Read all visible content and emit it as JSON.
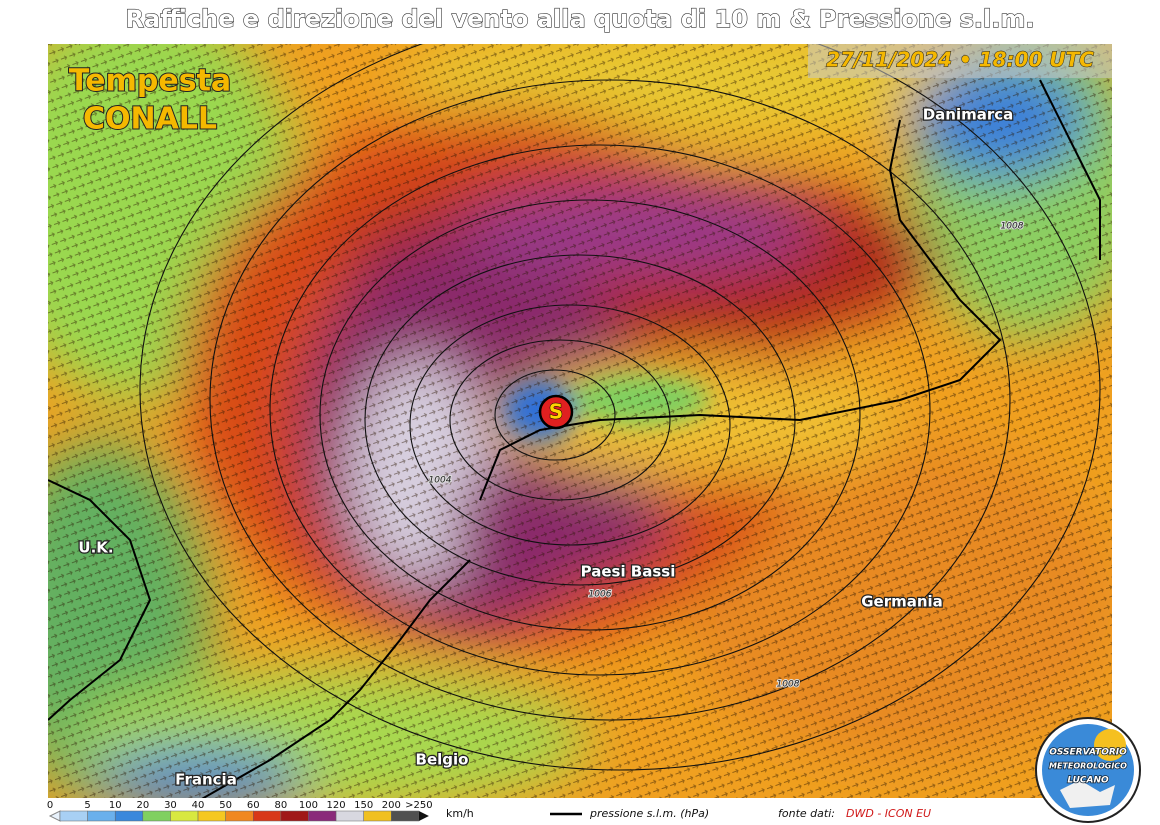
{
  "header": {
    "title": "Raffiche e direzione del vento alla quota di 10 m & Pressione s.l.m.",
    "timestamp": "27/11/2024 • 18:00 UTC"
  },
  "storm": {
    "label": "Tempesta",
    "name": "CONALL",
    "center_marker": "S"
  },
  "map": {
    "places": [
      "Danimarca",
      "U.K.",
      "Paesi Bassi",
      "Germania",
      "Belgio",
      "Francia"
    ],
    "isobar_labels": [
      "1008",
      "1004",
      "1006",
      "1008"
    ]
  },
  "legend": {
    "scale": [
      "0",
      "5",
      "10",
      "20",
      "30",
      "40",
      "50",
      "60",
      "80",
      "100",
      "120",
      "150",
      "200",
      ">250"
    ],
    "unit": "km/h",
    "line_label": "pressione s.l.m. (hPa)",
    "source_label": "fonte dati:",
    "source": "DWD - ICON EU"
  },
  "logo": {
    "lines": [
      "OSSERVATORIO",
      "METEOROLOGICO",
      "LUCANO"
    ]
  }
}
